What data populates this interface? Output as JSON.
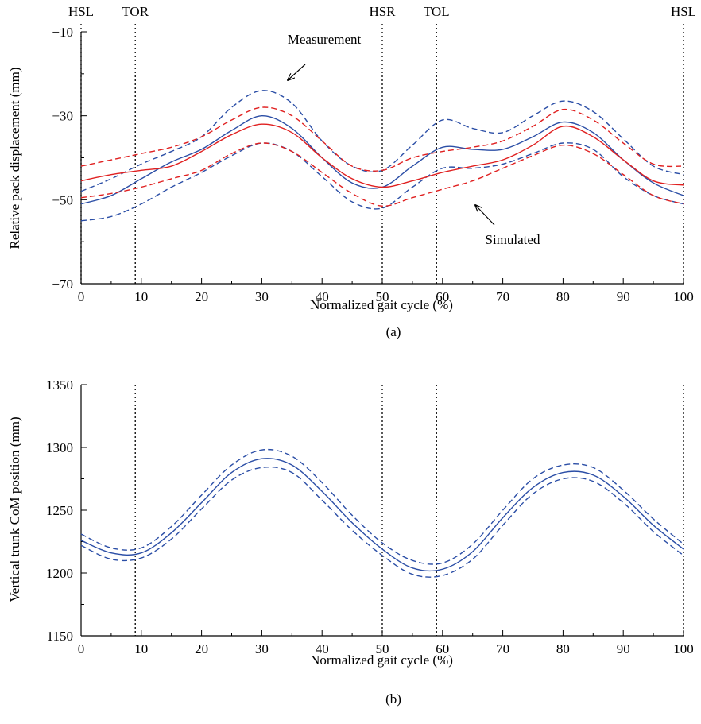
{
  "chart_data": [
    {
      "type": "line",
      "panel_label": "(a)",
      "xlabel": "Normalized gait cycle (%)",
      "ylabel": "Relative pack displacement (mm)",
      "xlim": [
        0,
        100
      ],
      "ylim": [
        -70,
        -10
      ],
      "xticks": [
        0,
        10,
        20,
        30,
        40,
        50,
        60,
        70,
        80,
        90,
        100
      ],
      "yticks": [
        -10,
        -30,
        -50,
        -70
      ],
      "grid": false,
      "events": [
        {
          "label": "HSL",
          "x": 0
        },
        {
          "label": "TOR",
          "x": 9
        },
        {
          "label": "HSR",
          "x": 50
        },
        {
          "label": "TOL",
          "x": 59
        },
        {
          "label": "HSL",
          "x": 100
        }
      ],
      "annotations": {
        "measurement": "Measurement",
        "simulated": "Simulated"
      },
      "x": [
        0,
        5,
        10,
        15,
        20,
        25,
        30,
        35,
        40,
        45,
        50,
        55,
        60,
        65,
        70,
        75,
        80,
        85,
        90,
        95,
        100
      ],
      "series": [
        {
          "role": "measurement-mean",
          "color": "#2b4ea6",
          "dash": "solid",
          "values": [
            -51,
            -49,
            -45,
            -41,
            -38,
            -33.5,
            -30,
            -33,
            -40,
            -46,
            -47,
            -42,
            -37.5,
            -38,
            -38,
            -35,
            -31.5,
            -34,
            -40.5,
            -46,
            -49
          ]
        },
        {
          "role": "measurement-upper",
          "color": "#2b4ea6",
          "dash": "dashed",
          "values": [
            -48,
            -45,
            -41.5,
            -38.5,
            -35,
            -28,
            -24,
            -27,
            -36,
            -42,
            -43,
            -37,
            -31,
            -33,
            -34,
            -30,
            -26.5,
            -29,
            -35.5,
            -42,
            -44
          ]
        },
        {
          "role": "measurement-lower",
          "color": "#2b4ea6",
          "dash": "dashed",
          "values": [
            -55,
            -54,
            -51,
            -47,
            -43.5,
            -39.5,
            -36.5,
            -38.5,
            -44.5,
            -50.5,
            -52,
            -47,
            -42.5,
            -42.5,
            -41.5,
            -39,
            -36.5,
            -38,
            -44.5,
            -49,
            -51
          ]
        },
        {
          "role": "simulated-mean",
          "color": "#e02020",
          "dash": "solid",
          "values": [
            -45.5,
            -44,
            -43,
            -42,
            -38.5,
            -34.5,
            -32,
            -34,
            -40,
            -45,
            -47,
            -45.5,
            -43.5,
            -42,
            -40.5,
            -37,
            -32.5,
            -35,
            -40.5,
            -45.5,
            -46.5
          ]
        },
        {
          "role": "simulated-upper",
          "color": "#e02020",
          "dash": "dashed",
          "values": [
            -42,
            -40.5,
            -39,
            -37.5,
            -35,
            -31,
            -28,
            -30,
            -36,
            -42,
            -43,
            -40,
            -38.5,
            -37.5,
            -36,
            -32.5,
            -28.5,
            -31,
            -36.5,
            -41.5,
            -42
          ]
        },
        {
          "role": "simulated-lower",
          "color": "#e02020",
          "dash": "dashed",
          "values": [
            -49.5,
            -48.5,
            -47,
            -45,
            -43,
            -39,
            -36.5,
            -38.5,
            -43.5,
            -48.5,
            -51.5,
            -49.5,
            -47.5,
            -45.5,
            -42.5,
            -39.5,
            -37,
            -39,
            -44,
            -49,
            -51
          ]
        }
      ]
    },
    {
      "type": "line",
      "panel_label": "(b)",
      "xlabel": "Normalized gait cycle (%)",
      "ylabel": "Vertical trunk CoM position (mm)",
      "xlim": [
        0,
        100
      ],
      "ylim": [
        1150,
        1350
      ],
      "xticks": [
        0,
        10,
        20,
        30,
        40,
        50,
        60,
        70,
        80,
        90,
        100
      ],
      "yticks": [
        1150,
        1200,
        1250,
        1300,
        1350
      ],
      "grid": false,
      "events": [
        {
          "x": 9
        },
        {
          "x": 50
        },
        {
          "x": 59
        },
        {
          "x": 100
        }
      ],
      "x": [
        0,
        5,
        10,
        15,
        20,
        25,
        30,
        35,
        40,
        45,
        50,
        55,
        60,
        65,
        70,
        75,
        80,
        85,
        90,
        95,
        100
      ],
      "series": [
        {
          "role": "mean",
          "color": "#2b4ea6",
          "dash": "solid",
          "values": [
            1226,
            1216,
            1216,
            1232,
            1256,
            1280,
            1291,
            1286,
            1265,
            1240,
            1219,
            1204,
            1203,
            1217,
            1244,
            1268,
            1280,
            1278,
            1261,
            1238,
            1219
          ]
        },
        {
          "role": "upper",
          "color": "#2b4ea6",
          "dash": "dashed",
          "values": [
            1231,
            1220,
            1220,
            1237,
            1262,
            1286,
            1298,
            1293,
            1272,
            1246,
            1224,
            1210,
            1208,
            1223,
            1250,
            1275,
            1286,
            1284,
            1266,
            1243,
            1223
          ]
        },
        {
          "role": "lower",
          "color": "#2b4ea6",
          "dash": "dashed",
          "values": [
            1222,
            1211,
            1212,
            1227,
            1251,
            1274,
            1284,
            1280,
            1258,
            1234,
            1214,
            1199,
            1198,
            1211,
            1238,
            1263,
            1275,
            1273,
            1256,
            1233,
            1214
          ]
        }
      ]
    }
  ]
}
